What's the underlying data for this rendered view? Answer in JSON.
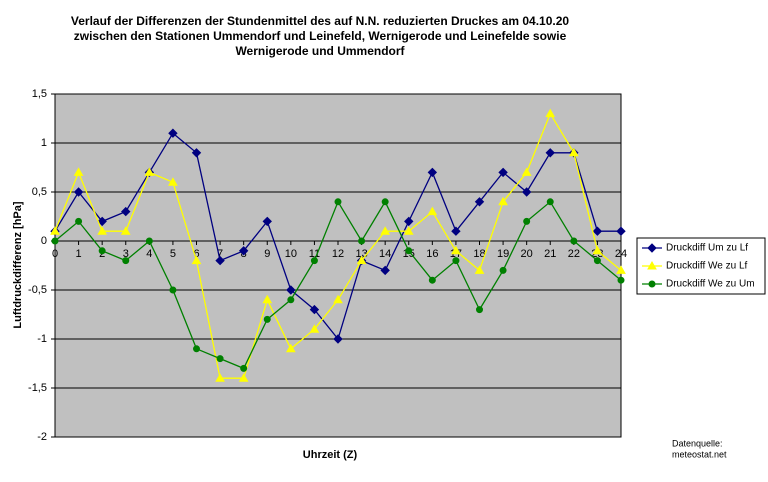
{
  "chart_data": {
    "type": "line",
    "title": [
      "Verlauf der Differenzen der Stundenmittel des auf N.N. reduzierten Druckes am 04.10.20",
      "zwischen den Stationen Ummendorf und Leinefeld, Wernigerode und Leinefelde sowie",
      "Wernigerode und Ummendorf"
    ],
    "x_label": "Uhrzeit (Z)",
    "y_label": "Luftdruckdifferenz [hPa]",
    "source": [
      "Datenquelle:",
      "meteostat.net"
    ],
    "x": [
      0,
      1,
      2,
      3,
      4,
      5,
      6,
      7,
      8,
      9,
      10,
      11,
      12,
      13,
      14,
      15,
      16,
      17,
      18,
      19,
      20,
      21,
      22,
      23,
      24
    ],
    "xlim": [
      0,
      24
    ],
    "ylim": [
      -2,
      1.5
    ],
    "yticks": [
      {
        "value": 1.5,
        "label": "1,5"
      },
      1,
      {
        "value": 0.5,
        "label": "0,5"
      },
      0,
      {
        "value": -0.5,
        "label": "-0,5"
      },
      -1,
      {
        "value": -1.5,
        "label": "-1,5"
      },
      -2
    ],
    "grid": true,
    "legend": "right",
    "series": [
      {
        "name": "Druckdiff Um zu Lf",
        "color": "#000080",
        "marker": "diamond",
        "values": [
          0.1,
          0.5,
          0.2,
          0.3,
          0.7,
          1.1,
          0.9,
          -0.2,
          -0.1,
          0.2,
          -0.5,
          -0.7,
          -1.0,
          -0.2,
          -0.3,
          0.2,
          0.7,
          0.1,
          0.4,
          0.7,
          0.5,
          0.9,
          0.9,
          0.1,
          0.1
        ]
      },
      {
        "name": "Druckdiff We zu Lf",
        "color": "#ffff00",
        "marker": "triangle",
        "values": [
          0.1,
          0.7,
          0.1,
          0.1,
          0.7,
          0.6,
          -0.2,
          -1.4,
          -1.4,
          -0.6,
          -1.1,
          -0.9,
          -0.6,
          -0.2,
          0.1,
          0.1,
          0.3,
          -0.1,
          -0.3,
          0.4,
          0.7,
          1.3,
          0.9,
          -0.1,
          -0.3
        ]
      },
      {
        "name": "Druckdiff We zu Um",
        "color": "#008000",
        "marker": "circle",
        "values": [
          0,
          0.2,
          -0.1,
          -0.2,
          0,
          -0.5,
          -1.1,
          -1.2,
          -1.3,
          -0.8,
          -0.6,
          -0.2,
          0.4,
          0,
          0.4,
          -0.1,
          -0.4,
          -0.2,
          -0.7,
          -0.3,
          0.2,
          0.4,
          0,
          -0.2,
          -0.4
        ]
      }
    ]
  }
}
